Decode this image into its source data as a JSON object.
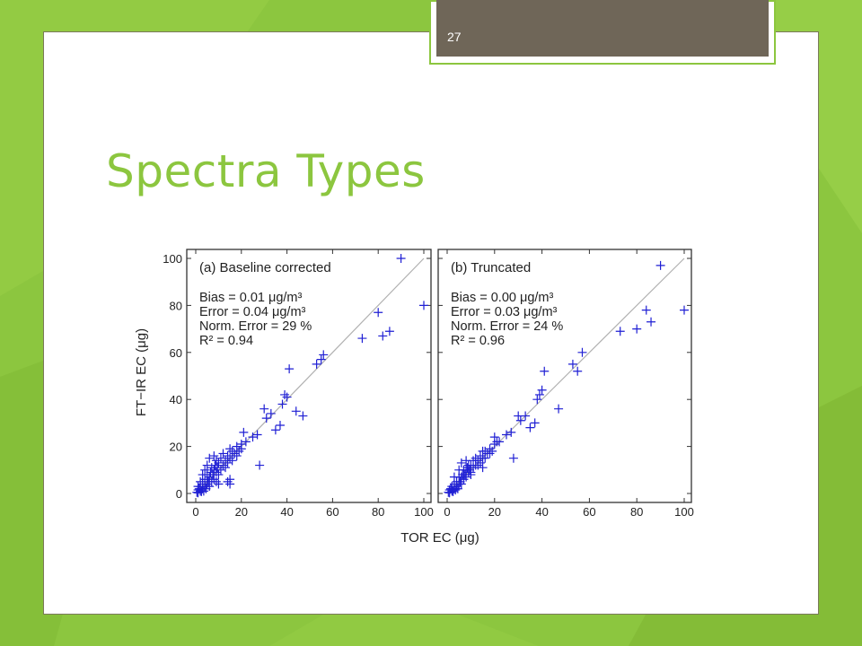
{
  "slide": {
    "number": "27",
    "title": "Spectra Types"
  },
  "colors": {
    "background": "#8cc63f",
    "title": "#8cc63f",
    "number_box": "#6f6658",
    "marker": "#1f1fd4",
    "reference_line": "#b0b0b0"
  },
  "chart_data": [
    {
      "type": "scatter",
      "panel_label": "(a) Baseline corrected",
      "xlabel": "TOR EC (μg)",
      "ylabel": "FT−IR EC (μg)",
      "xlim": [
        0,
        100
      ],
      "ylim": [
        0,
        100
      ],
      "xticks": [
        "0",
        "20",
        "40",
        "60",
        "80",
        "100"
      ],
      "yticks": [
        "0",
        "20",
        "40",
        "60",
        "80",
        "100"
      ],
      "marker": "+",
      "reference_line": "1:1",
      "stats": {
        "bias": "Bias = 0.01 μg/m³",
        "error": "Error = 0.04 μg/m³",
        "norm_error": "Norm. Error = 29 %",
        "r2": "R² = 0.94"
      },
      "points": [
        [
          0.5,
          0.5
        ],
        [
          1,
          0.3
        ],
        [
          1,
          1.5
        ],
        [
          1.5,
          2
        ],
        [
          2,
          1
        ],
        [
          2,
          3
        ],
        [
          2.5,
          0.8
        ],
        [
          3,
          2
        ],
        [
          3,
          4
        ],
        [
          3.5,
          1
        ],
        [
          4,
          3
        ],
        [
          4,
          6
        ],
        [
          4.5,
          2
        ],
        [
          5,
          4
        ],
        [
          5,
          8
        ],
        [
          5.5,
          5
        ],
        [
          6,
          3
        ],
        [
          6,
          7
        ],
        [
          6.5,
          9
        ],
        [
          7,
          5
        ],
        [
          7,
          11
        ],
        [
          7.5,
          8
        ],
        [
          8,
          6
        ],
        [
          8,
          10
        ],
        [
          8.5,
          12
        ],
        [
          9,
          9
        ],
        [
          9,
          14
        ],
        [
          9.5,
          11
        ],
        [
          10,
          8
        ],
        [
          10,
          13
        ],
        [
          11,
          10
        ],
        [
          11,
          15
        ],
        [
          12,
          12
        ],
        [
          12,
          17
        ],
        [
          13,
          11
        ],
        [
          13,
          14
        ],
        [
          14,
          13
        ],
        [
          14,
          16
        ],
        [
          15,
          15
        ],
        [
          15,
          19
        ],
        [
          16,
          14
        ],
        [
          16,
          18
        ],
        [
          17,
          17
        ],
        [
          18,
          20
        ],
        [
          18,
          16
        ],
        [
          19,
          18
        ],
        [
          20,
          21
        ],
        [
          20,
          19
        ],
        [
          21,
          26
        ],
        [
          22,
          22
        ],
        [
          3,
          8
        ],
        [
          5,
          12
        ],
        [
          6,
          15
        ],
        [
          8,
          16
        ],
        [
          9,
          5
        ],
        [
          10,
          4
        ],
        [
          15,
          6
        ],
        [
          4,
          10
        ],
        [
          2,
          5
        ],
        [
          1,
          3
        ],
        [
          15,
          4
        ],
        [
          14,
          5
        ],
        [
          25,
          24
        ],
        [
          27,
          25
        ],
        [
          28,
          12
        ],
        [
          30,
          36
        ],
        [
          31,
          32
        ],
        [
          33,
          34
        ],
        [
          35,
          27
        ],
        [
          37,
          29
        ],
        [
          38,
          38
        ],
        [
          39,
          42
        ],
        [
          40,
          41
        ],
        [
          41,
          53
        ],
        [
          44,
          35
        ],
        [
          47,
          33
        ],
        [
          53,
          55
        ],
        [
          55,
          57
        ],
        [
          56,
          59
        ],
        [
          73,
          66
        ],
        [
          80,
          77
        ],
        [
          82,
          67
        ],
        [
          85,
          69
        ],
        [
          90,
          100
        ],
        [
          100,
          80
        ]
      ]
    },
    {
      "type": "scatter",
      "panel_label": "(b) Truncated",
      "xlabel": "TOR EC (μg)",
      "ylabel": "FT−IR EC (μg)",
      "xlim": [
        0,
        100
      ],
      "ylim": [
        0,
        100
      ],
      "xticks": [
        "0",
        "20",
        "40",
        "60",
        "80",
        "100"
      ],
      "yticks": [
        "0",
        "20",
        "40",
        "60",
        "80",
        "100"
      ],
      "marker": "+",
      "reference_line": "1:1",
      "stats": {
        "bias": "Bias = 0.00 μg/m³",
        "error": "Error = 0.03 μg/m³",
        "norm_error": "Norm. Error = 24 %",
        "r2": "R² = 0.96"
      },
      "points": [
        [
          0.5,
          0.5
        ],
        [
          1,
          0.3
        ],
        [
          1,
          1.5
        ],
        [
          1.5,
          2
        ],
        [
          2,
          1
        ],
        [
          2,
          3
        ],
        [
          2.5,
          0.8
        ],
        [
          3,
          2
        ],
        [
          3,
          4
        ],
        [
          3.5,
          1.5
        ],
        [
          4,
          3
        ],
        [
          4,
          5
        ],
        [
          4.5,
          2
        ],
        [
          5,
          4
        ],
        [
          5,
          7
        ],
        [
          5.5,
          5
        ],
        [
          6,
          4
        ],
        [
          6,
          7
        ],
        [
          6.5,
          8
        ],
        [
          7,
          6
        ],
        [
          7,
          10
        ],
        [
          7.5,
          8
        ],
        [
          8,
          7
        ],
        [
          8,
          10
        ],
        [
          8.5,
          11
        ],
        [
          9,
          9
        ],
        [
          9,
          12
        ],
        [
          9.5,
          10
        ],
        [
          10,
          9
        ],
        [
          10,
          12
        ],
        [
          11,
          11
        ],
        [
          11,
          14
        ],
        [
          12,
          12
        ],
        [
          12,
          15
        ],
        [
          13,
          12
        ],
        [
          13,
          14
        ],
        [
          14,
          13
        ],
        [
          14,
          16
        ],
        [
          15,
          15
        ],
        [
          15,
          18
        ],
        [
          16,
          15
        ],
        [
          16,
          18
        ],
        [
          17,
          17
        ],
        [
          18,
          19
        ],
        [
          18,
          17
        ],
        [
          19,
          18
        ],
        [
          20,
          21
        ],
        [
          20,
          24
        ],
        [
          21,
          22
        ],
        [
          22,
          22
        ],
        [
          3,
          7
        ],
        [
          5,
          10
        ],
        [
          6,
          13
        ],
        [
          8,
          14
        ],
        [
          10,
          8
        ],
        [
          15,
          11
        ],
        [
          25,
          25
        ],
        [
          27,
          26
        ],
        [
          28,
          15
        ],
        [
          30,
          33
        ],
        [
          31,
          31
        ],
        [
          33,
          33
        ],
        [
          35,
          28
        ],
        [
          37,
          30
        ],
        [
          38,
          40
        ],
        [
          39,
          42
        ],
        [
          40,
          44
        ],
        [
          41,
          52
        ],
        [
          47,
          36
        ],
        [
          53,
          55
        ],
        [
          55,
          52
        ],
        [
          57,
          60
        ],
        [
          73,
          69
        ],
        [
          80,
          70
        ],
        [
          84,
          78
        ],
        [
          86,
          73
        ],
        [
          90,
          97
        ],
        [
          100,
          78
        ]
      ]
    }
  ]
}
